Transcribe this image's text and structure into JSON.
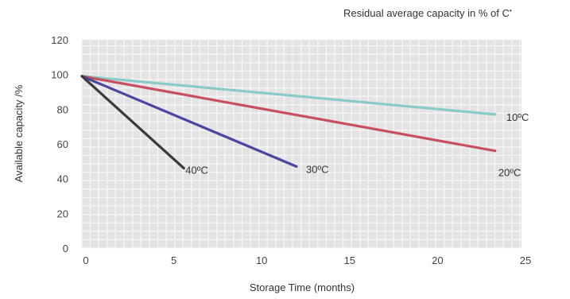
{
  "chart_data": {
    "type": "line",
    "title": "Residual average capacity in % of C",
    "title_suffix": "•",
    "xlabel": "Storage Time (months)",
    "ylabel": "Available capacity /%",
    "xlim": [
      0,
      25
    ],
    "ylim": [
      0,
      120
    ],
    "xticks": [
      0,
      5,
      10,
      15,
      20,
      25
    ],
    "yticks": [
      0,
      20,
      40,
      60,
      80,
      100,
      120
    ],
    "grid": true,
    "series": [
      {
        "name": "10ºC",
        "color": "#88cbc8",
        "x": [
          0,
          23.5
        ],
        "y": [
          99,
          77
        ]
      },
      {
        "name": "20ºC",
        "color": "#c8505e",
        "x": [
          0,
          23.5
        ],
        "y": [
          99,
          56
        ]
      },
      {
        "name": "30ºC",
        "color": "#4b47a0",
        "x": [
          0,
          12.2
        ],
        "y": [
          99,
          47
        ]
      },
      {
        "name": "40ºC",
        "color": "#3a3a3a",
        "x": [
          0,
          5.8
        ],
        "y": [
          99,
          46
        ]
      }
    ]
  }
}
